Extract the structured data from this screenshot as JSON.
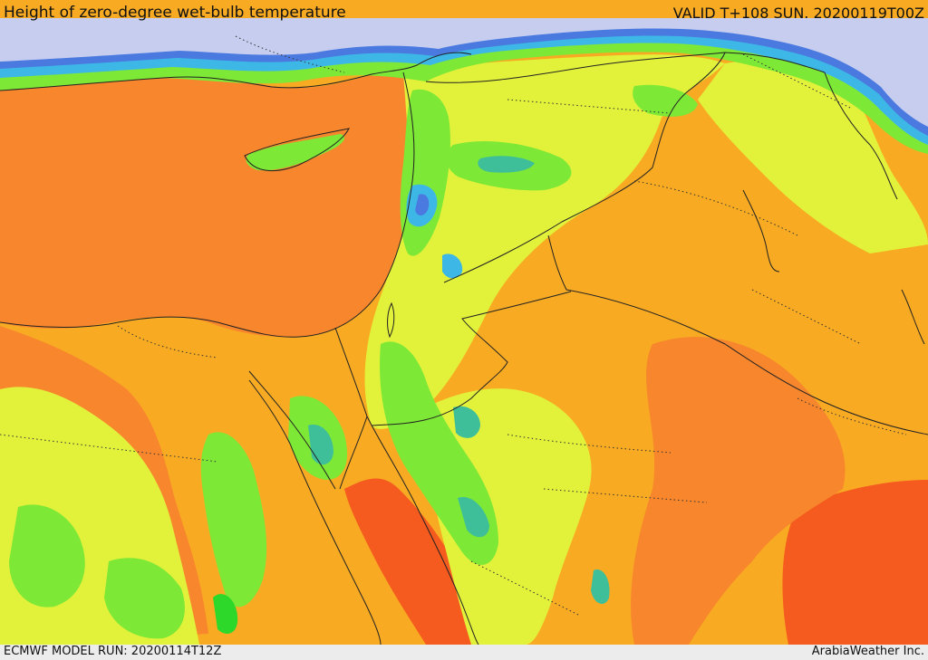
{
  "header": {
    "title": "Height of zero-degree wet-bulb temperature",
    "valid": "VALID T+108 SUN. 20200119T00Z"
  },
  "footer": {
    "model_run": "ECMWF MODEL RUN: 20200114T12Z",
    "credit": "ArabiaWeather Inc."
  },
  "colors": {
    "sea": "#f68b2c",
    "orange_light": "#f8ab22",
    "orange_dark": "#f7862d",
    "red": "#f55a1e",
    "yellow": "#e2f23a",
    "yellow_green": "#c9ee36",
    "green": "#7ee836",
    "bright_green": "#2ed82a",
    "teal": "#3ebf9a",
    "cyan": "#3db8e6",
    "blue": "#4a7ae0",
    "lavender": "#c7cdef"
  }
}
